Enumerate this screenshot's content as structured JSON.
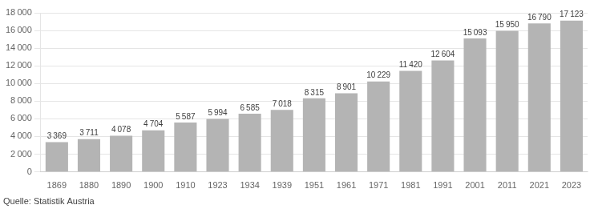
{
  "chart_data": {
    "type": "bar",
    "categories": [
      "1869",
      "1880",
      "1890",
      "1900",
      "1910",
      "1923",
      "1934",
      "1939",
      "1951",
      "1961",
      "1971",
      "1981",
      "1991",
      "2001",
      "2011",
      "2021",
      "2023"
    ],
    "values": [
      3369,
      3711,
      4078,
      4704,
      5587,
      5994,
      6585,
      7018,
      8315,
      8901,
      10229,
      11420,
      12604,
      15093,
      15950,
      16790,
      17123
    ],
    "value_labels": [
      "3 369",
      "3 711",
      "4 078",
      "4 704",
      "5 587",
      "5 994",
      "6 585",
      "7 018",
      "8 315",
      "8 901",
      "10 229",
      "11 420",
      "12 604",
      "15 093",
      "15 950",
      "16 790",
      "17 123"
    ],
    "color": "#b4b4b4",
    "ylim": [
      0,
      18000
    ],
    "yticks": [
      0,
      {
        "value": 2000,
        "label": "2 000"
      },
      {
        "value": 4000,
        "label": "4 000"
      },
      {
        "value": 6000,
        "label": "6 000"
      },
      {
        "value": 8000,
        "label": "8 000"
      },
      {
        "value": 10000,
        "label": "10 000"
      },
      {
        "value": 12000,
        "label": "12 000"
      },
      {
        "value": 14000,
        "label": "14 000"
      },
      {
        "value": 16000,
        "label": "16 000"
      },
      {
        "value": 18000,
        "label": "18 000"
      }
    ],
    "grid": true,
    "data_labels": true,
    "annotations": [
      "Quelle: Statistik Austria"
    ]
  }
}
